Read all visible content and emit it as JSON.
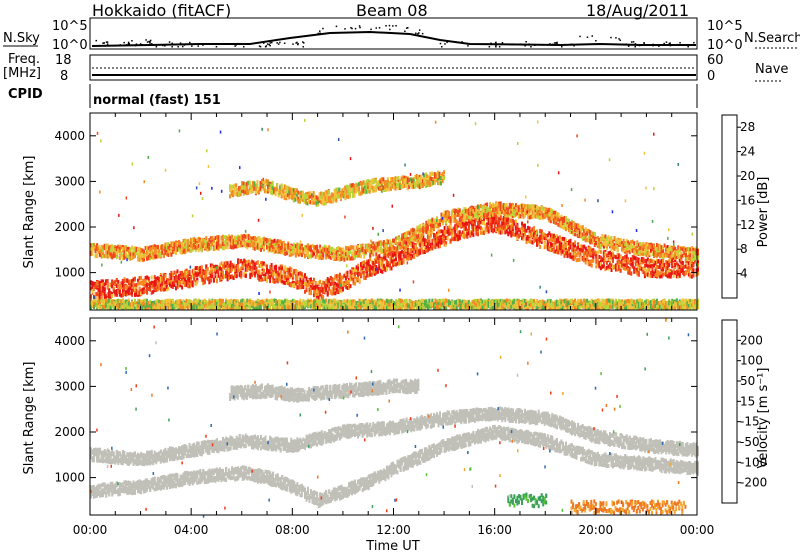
{
  "header": {
    "title_left": "Hokkaido (fitACF)",
    "title_center": "Beam 08",
    "title_right": "18/Aug/2011"
  },
  "status_panels": {
    "nsky_label": "N.Sky",
    "nsky_tick_top": "10^5",
    "nsky_tick_bottom": "10^0",
    "nsearch_label": "N.Search",
    "nsearch_tick_top": "10^5",
    "nsearch_tick_bottom": "10^0",
    "freq_label": "Freq.",
    "freq_unit": "[MHz]",
    "freq_tick_top": "18",
    "freq_tick_bottom": "8",
    "nave_label": "Nave",
    "nave_tick_top": "60",
    "nave_tick_bottom": "0",
    "cpid_label": "CPID",
    "cpid_text": "normal (fast) 151"
  },
  "chart_data": [
    {
      "type": "heatmap",
      "title": "",
      "xlabel": "",
      "ylabel": "Slant Range [km]",
      "x_ticks": [
        "00:00",
        "04:00",
        "08:00",
        "12:00",
        "16:00",
        "20:00",
        "00:00"
      ],
      "xlim": [
        0,
        24
      ],
      "y_ticks": [
        "1000",
        "2000",
        "3000",
        "4000"
      ],
      "ylim": [
        180,
        4500
      ],
      "colorbar": {
        "label": "Power [dB]",
        "ticks": [
          "4",
          "8",
          "12",
          "16",
          "20",
          "24",
          "28"
        ],
        "range": [
          0,
          30
        ],
        "colors": [
          "#1d2cf0",
          "#2e51a8",
          "#3a8a6a",
          "#4fae4a",
          "#b7d63a",
          "#f5c23c",
          "#f58a22",
          "#f0461e",
          "#e81414"
        ]
      },
      "bands": [
        {
          "name": "lower_strong",
          "points": [
            [
              0,
              600
            ],
            [
              2,
              700
            ],
            [
              4,
              900
            ],
            [
              6,
              1100
            ],
            [
              7,
              1000
            ],
            [
              8,
              900
            ],
            [
              9,
              600
            ],
            [
              10,
              800
            ],
            [
              11,
              1100
            ],
            [
              12,
              1300
            ],
            [
              13,
              1600
            ],
            [
              14,
              1800
            ],
            [
              15,
              2000
            ],
            [
              16,
              2100
            ],
            [
              17,
              1900
            ],
            [
              18,
              1700
            ],
            [
              19,
              1500
            ],
            [
              20,
              1300
            ],
            [
              21,
              1200
            ],
            [
              22,
              1100
            ],
            [
              24,
              1100
            ]
          ],
          "power": 26
        },
        {
          "name": "upper_echo",
          "points": [
            [
              0,
              1500
            ],
            [
              2,
              1400
            ],
            [
              4,
              1600
            ],
            [
              6,
              1700
            ],
            [
              8,
              1500
            ],
            [
              10,
              1400
            ],
            [
              12,
              1600
            ],
            [
              14,
              2200
            ],
            [
              16,
              2400
            ],
            [
              18,
              2300
            ],
            [
              20,
              1700
            ],
            [
              22,
              1500
            ],
            [
              24,
              1400
            ]
          ],
          "power": 22
        },
        {
          "name": "far_echo",
          "points": [
            [
              5.5,
              2800
            ],
            [
              7,
              2900
            ],
            [
              8,
              2700
            ],
            [
              9,
              2600
            ],
            [
              11,
              2900
            ],
            [
              13,
              3000
            ],
            [
              14,
              3100
            ]
          ],
          "power": 20
        },
        {
          "name": "near_range",
          "points": [
            [
              0,
              300
            ],
            [
              24,
              300
            ]
          ],
          "power": 18
        }
      ]
    },
    {
      "type": "heatmap",
      "title": "",
      "xlabel": "Time UT",
      "ylabel": "Slant Range [km]",
      "x_ticks": [
        "00:00",
        "04:00",
        "08:00",
        "12:00",
        "16:00",
        "20:00",
        "00:00"
      ],
      "xlim": [
        0,
        24
      ],
      "y_ticks": [
        "1000",
        "2000",
        "3000",
        "4000"
      ],
      "ylim": [
        180,
        4500
      ],
      "colorbar": {
        "label": "Velocity [m s⁻¹]",
        "ticks": [
          "200",
          "100",
          "50",
          "15",
          "-15",
          "-50",
          "-100",
          "-200"
        ],
        "range": [
          -250,
          250
        ],
        "colors": [
          "#1d2cc8",
          "#2a6ab8",
          "#3aa05a",
          "#5ac23a",
          "#c0c0b8",
          "#f0a830",
          "#f07820",
          "#f03c18",
          "#e81010"
        ]
      },
      "bands": [
        {
          "name": "ground_scatter_lower",
          "points": [
            [
              0,
              700
            ],
            [
              2,
              800
            ],
            [
              4,
              1000
            ],
            [
              6,
              1100
            ],
            [
              7,
              1000
            ],
            [
              8,
              800
            ],
            [
              9,
              500
            ],
            [
              10,
              700
            ],
            [
              11,
              900
            ],
            [
              12,
              1200
            ],
            [
              14,
              1700
            ],
            [
              16,
              2000
            ],
            [
              18,
              1800
            ],
            [
              20,
              1400
            ],
            [
              22,
              1300
            ],
            [
              24,
              1200
            ]
          ],
          "velocity": 0
        },
        {
          "name": "ground_scatter_upper",
          "points": [
            [
              0,
              1500
            ],
            [
              2,
              1400
            ],
            [
              4,
              1600
            ],
            [
              6,
              1800
            ],
            [
              8,
              1700
            ],
            [
              10,
              2000
            ],
            [
              12,
              2100
            ],
            [
              14,
              2300
            ],
            [
              16,
              2400
            ],
            [
              18,
              2300
            ],
            [
              20,
              1900
            ],
            [
              22,
              1700
            ],
            [
              24,
              1600
            ]
          ],
          "velocity": 0
        },
        {
          "name": "far_scatter",
          "points": [
            [
              5.5,
              2850
            ],
            [
              7,
              2900
            ],
            [
              8,
              2800
            ],
            [
              10,
              2900
            ],
            [
              12,
              3000
            ],
            [
              13,
              3000
            ]
          ],
          "velocity": 0
        },
        {
          "name": "positive_patch",
          "points": [
            [
              16.5,
              500
            ],
            [
              18,
              500
            ]
          ],
          "velocity": 60
        },
        {
          "name": "negative_patch",
          "points": [
            [
              19,
              350
            ],
            [
              23.5,
              350
            ]
          ],
          "velocity": -60
        }
      ]
    }
  ]
}
